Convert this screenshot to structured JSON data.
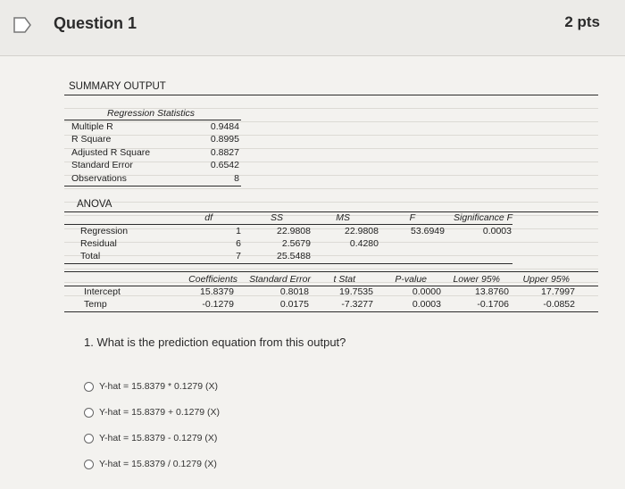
{
  "header": {
    "question_title": "Question 1",
    "points": "2 pts"
  },
  "summary_title": "SUMMARY OUTPUT",
  "regression_stats": {
    "title": "Regression Statistics",
    "rows": [
      {
        "label": "Multiple R",
        "value": "0.9484"
      },
      {
        "label": "R Square",
        "value": "0.8995"
      },
      {
        "label": "Adjusted R Square",
        "value": "0.8827"
      },
      {
        "label": "Standard Error",
        "value": "0.6542"
      },
      {
        "label": "Observations",
        "value": "8"
      }
    ]
  },
  "anova": {
    "title": "ANOVA",
    "headers": [
      "df",
      "SS",
      "MS",
      "F",
      "Significance F"
    ],
    "rows": [
      {
        "label": "Regression",
        "df": "1",
        "ss": "22.9808",
        "ms": "22.9808",
        "f": "53.6949",
        "sig": "0.0003"
      },
      {
        "label": "Residual",
        "df": "6",
        "ss": "2.5679",
        "ms": "0.4280",
        "f": "",
        "sig": ""
      },
      {
        "label": "Total",
        "df": "7",
        "ss": "25.5488",
        "ms": "",
        "f": "",
        "sig": ""
      }
    ]
  },
  "coefficients": {
    "headers": [
      "Coefficients",
      "Standard Error",
      "t Stat",
      "P-value",
      "Lower 95%",
      "Upper 95%"
    ],
    "rows": [
      {
        "label": "Intercept",
        "coef": "15.8379",
        "se": "0.8018",
        "t": "19.7535",
        "p": "0.0000",
        "lower": "13.8760",
        "upper": "17.7997"
      },
      {
        "label": "Temp",
        "coef": "-0.1279",
        "se": "0.0175",
        "t": "-7.3277",
        "p": "0.0003",
        "lower": "-0.1706",
        "upper": "-0.0852"
      }
    ]
  },
  "question_text": "1. What is the prediction equation from this output?",
  "options": [
    "Y-hat = 15.8379 * 0.1279 (X)",
    "Y-hat = 15.8379 + 0.1279 (X)",
    "Y-hat = 15.8379 - 0.1279 (X)",
    "Y-hat = 15.8379 / 0.1279 (X)"
  ]
}
